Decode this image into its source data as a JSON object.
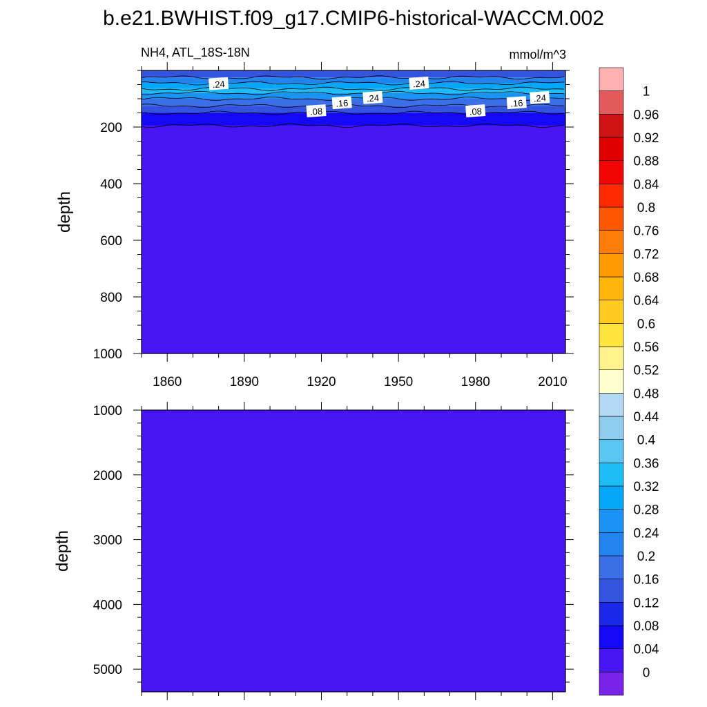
{
  "figure": {
    "title": "b.e21.BWHIST.f09_g17.CMIP6-historical-WACCM.002",
    "variable_region": "NH4, ATL_18S-18N",
    "units": "mmol/m^3"
  },
  "chart_data": [
    {
      "type": "heatmap",
      "panel": "upper",
      "x": {
        "label": "",
        "range": [
          1850,
          2015
        ],
        "ticks": [
          1860,
          1890,
          1920,
          1950,
          1980,
          2010
        ],
        "minor_step": 10
      },
      "y": {
        "label": "depth",
        "range": [
          0,
          1000
        ],
        "inverted": true,
        "ticks": [
          200,
          400,
          600,
          800,
          1000
        ],
        "minor_step": 50
      },
      "contour_labels": [
        {
          "year": 1880,
          "depth": 48,
          "text": ".24"
        },
        {
          "year": 1958,
          "depth": 46,
          "text": ".24"
        },
        {
          "year": 1928,
          "depth": 115,
          "text": ".16"
        },
        {
          "year": 1940,
          "depth": 97,
          "text": ".24"
        },
        {
          "year": 1918,
          "depth": 144,
          "text": ".08"
        },
        {
          "year": 1980,
          "depth": 144,
          "text": ".08"
        },
        {
          "year": 1996,
          "depth": 115,
          "text": ".16"
        },
        {
          "year": 2005,
          "depth": 97,
          "text": ".24"
        }
      ],
      "field_by_depth": [
        {
          "depth_range": [
            0,
            25
          ],
          "value_range": [
            0.12,
            0.16
          ]
        },
        {
          "depth_range": [
            25,
            45
          ],
          "value_range": [
            0.2,
            0.24
          ]
        },
        {
          "depth_range": [
            45,
            65
          ],
          "value_range": [
            0.28,
            0.32
          ]
        },
        {
          "depth_range": [
            65,
            80
          ],
          "value_range": [
            0.32,
            0.36
          ]
        },
        {
          "depth_range": [
            80,
            100
          ],
          "value_range": [
            0.24,
            0.28
          ]
        },
        {
          "depth_range": [
            100,
            125
          ],
          "value_range": [
            0.16,
            0.2
          ]
        },
        {
          "depth_range": [
            125,
            150
          ],
          "value_range": [
            0.12,
            0.16
          ]
        },
        {
          "depth_range": [
            150,
            195
          ],
          "value_range": [
            0.04,
            0.08
          ]
        },
        {
          "depth_range": [
            195,
            1000
          ],
          "value_range": [
            0.0,
            0.04
          ]
        }
      ]
    },
    {
      "type": "heatmap",
      "panel": "lower",
      "x": {
        "label": "",
        "range": [
          1850,
          2015
        ],
        "ticks": [
          1860,
          1890,
          1920,
          1950,
          1980,
          2010
        ],
        "minor_step": 10,
        "tick_labels_shown": false
      },
      "y": {
        "label": "depth",
        "range": [
          1000,
          5350
        ],
        "inverted": true,
        "ticks": [
          1000,
          2000,
          3000,
          4000,
          5000
        ],
        "minor_step": 200
      },
      "field_by_depth": [
        {
          "depth_range": [
            1000,
            5350
          ],
          "value_range": [
            0.0,
            0.04
          ]
        }
      ]
    }
  ],
  "colorbar": {
    "levels": [
      "0",
      "0.04",
      "0.08",
      "0.12",
      "0.16",
      "0.2",
      "0.24",
      "0.28",
      "0.32",
      "0.36",
      "0.4",
      "0.44",
      "0.48",
      "0.52",
      "0.56",
      "0.6",
      "0.64",
      "0.68",
      "0.72",
      "0.76",
      "0.8",
      "0.84",
      "0.88",
      "0.92",
      "0.96",
      "1"
    ],
    "colors": [
      "#7a23e8",
      "#4815f5",
      "#1408f6",
      "#1a28ea",
      "#3454e0",
      "#3a6fe8",
      "#2484ef",
      "#1993f5",
      "#05a8f8",
      "#1ebcf6",
      "#5ac6f3",
      "#8fcdee",
      "#b3daf2",
      "#ffffcd",
      "#fff28c",
      "#ffe43b",
      "#ffcb20",
      "#ffb50c",
      "#ff9a00",
      "#ff7d08",
      "#ff5600",
      "#ff2a00",
      "#f30505",
      "#e00000",
      "#cd1313",
      "#e25a5a",
      "#ffb1b1"
    ]
  }
}
